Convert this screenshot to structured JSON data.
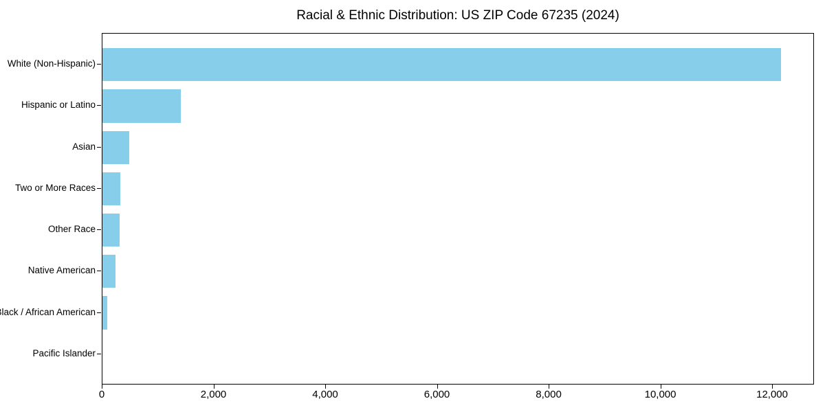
{
  "chart_data": {
    "type": "bar",
    "orientation": "horizontal",
    "title": "Racial & Ethnic Distribution: US ZIP Code 67235 (2024)",
    "categories": [
      "White (Non-Hispanic)",
      "Hispanic or Latino",
      "Asian",
      "Two or More Races",
      "Other Race",
      "Native American",
      "Black / African American",
      "Pacific Islander"
    ],
    "values": [
      12150,
      1400,
      485,
      325,
      310,
      235,
      85,
      0
    ],
    "xlabel": "",
    "ylabel": "",
    "xlim": [
      0,
      12750
    ],
    "xticks": [
      0,
      2000,
      4000,
      6000,
      8000,
      10000,
      12000
    ],
    "xtick_labels": [
      "0",
      "2,000",
      "4,000",
      "6,000",
      "8,000",
      "10,000",
      "12,000"
    ],
    "grid": false,
    "legend_position": "none",
    "bar_color": "#87CEEB",
    "frame_color": "#000000",
    "background_color": "#FFFFFF",
    "text_color": "#000000"
  }
}
